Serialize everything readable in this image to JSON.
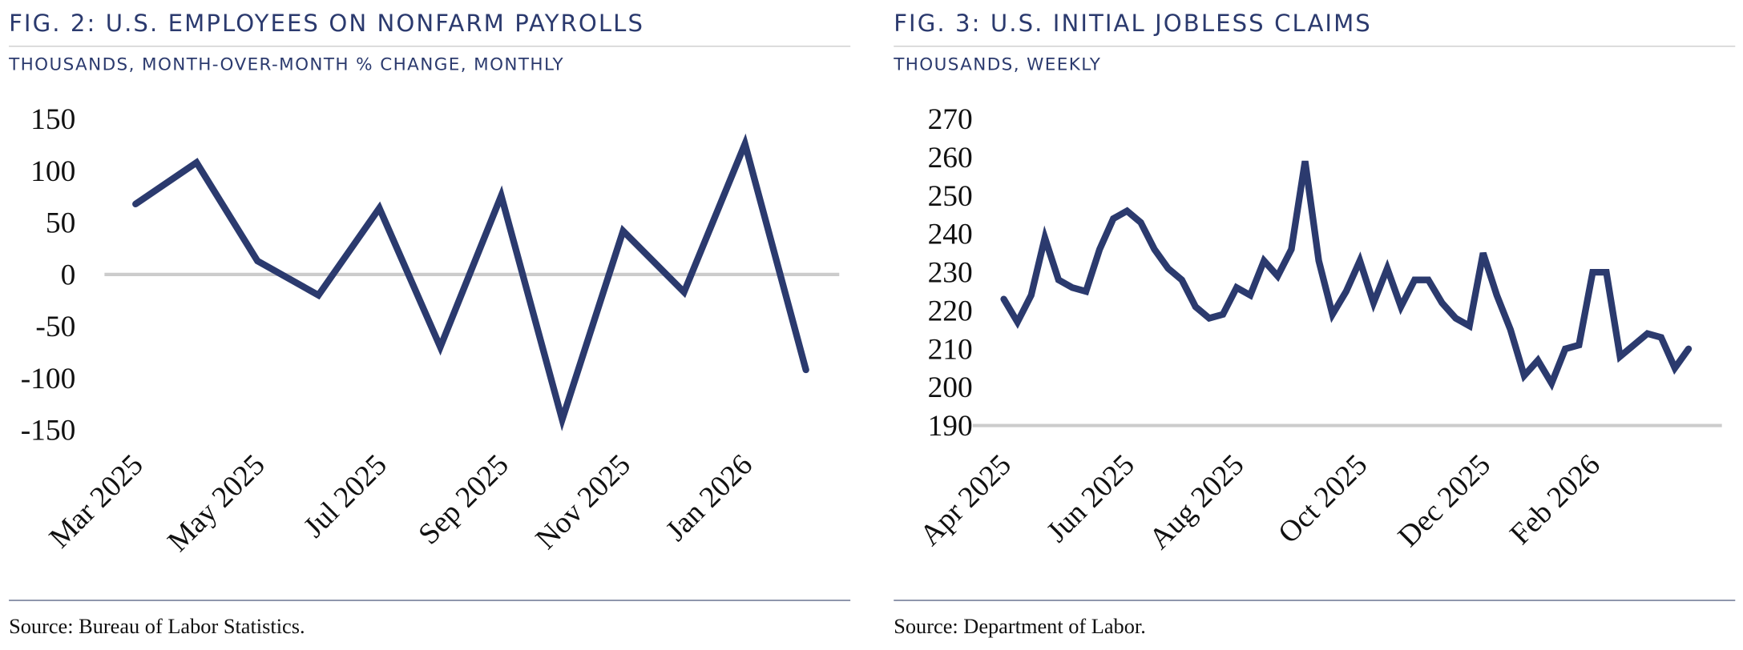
{
  "chart_data": [
    {
      "type": "line",
      "title": "FIG. 2: U.S. EMPLOYEES ON NONFARM PAYROLLS",
      "subtitle": "THOUSANDS, MONTH-OVER-MONTH % CHANGE, MONTHLY",
      "source": "Source: Bureau of Labor Statistics.",
      "categories": [
        "Mar 2025",
        null,
        "May 2025",
        null,
        "Jul 2025",
        null,
        "Sep 2025",
        null,
        "Nov 2025",
        null,
        "Jan 2026",
        null
      ],
      "values": [
        68,
        108,
        13,
        -20,
        64,
        -70,
        76,
        -140,
        42,
        -17,
        126,
        -92
      ],
      "color": "#2b3a6e",
      "ylim": [
        -150,
        150
      ],
      "yticks": [
        150,
        100,
        50,
        0,
        -50,
        -100,
        -150
      ]
    },
    {
      "type": "line",
      "title": "FIG. 3: U.S. INITIAL JOBLESS CLAIMS",
      "subtitle": "THOUSANDS, WEEKLY",
      "source": "Source: Department of Labor.",
      "categories": [
        "Apr 2025",
        null,
        null,
        null,
        null,
        null,
        null,
        null,
        null,
        "Jun 2025",
        null,
        null,
        null,
        null,
        null,
        null,
        null,
        "Aug 2025",
        null,
        null,
        null,
        null,
        null,
        null,
        null,
        null,
        "Oct 2025",
        null,
        null,
        null,
        null,
        null,
        null,
        null,
        null,
        "Dec 2025",
        null,
        null,
        null,
        null,
        null,
        null,
        null,
        "Feb 2026",
        null,
        null,
        null,
        null,
        null,
        null,
        null
      ],
      "values": [
        223,
        217,
        224,
        239,
        228,
        226,
        225,
        236,
        244,
        246,
        243,
        236,
        231,
        228,
        221,
        218,
        219,
        226,
        224,
        233,
        229,
        236,
        259,
        233,
        219,
        225,
        233,
        222,
        231,
        221,
        228,
        228,
        222,
        218,
        216,
        235,
        224,
        215,
        203,
        207,
        201,
        210,
        211,
        230,
        230,
        208,
        211,
        214,
        213,
        205,
        210
      ],
      "color": "#2b3a6e",
      "ylim": [
        190,
        270
      ],
      "yticks": [
        270,
        260,
        250,
        240,
        230,
        220,
        210,
        200,
        190
      ]
    }
  ]
}
